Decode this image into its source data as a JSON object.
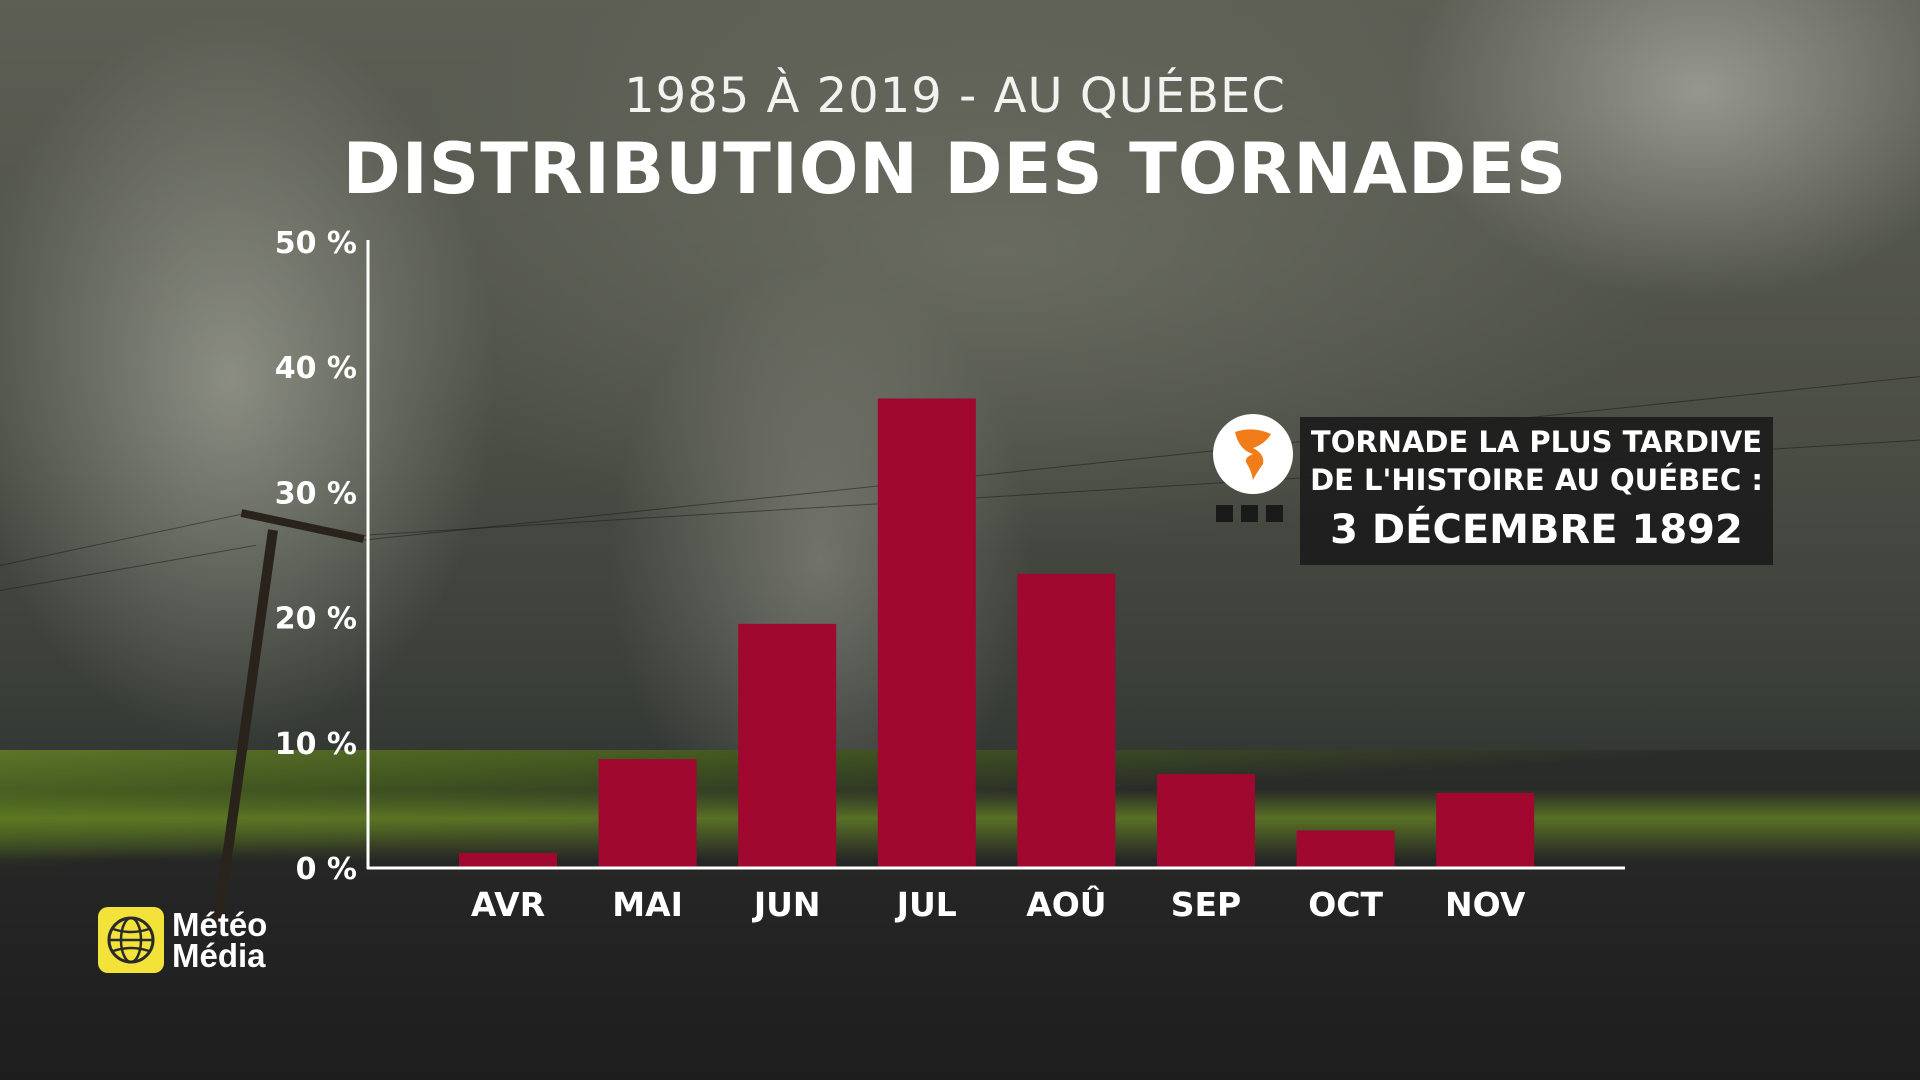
{
  "header": {
    "subtitle": "1985 À 2019 - AU QUÉBEC",
    "title": "DISTRIBUTION DES TORNADES"
  },
  "chart_data": {
    "type": "bar",
    "categories": [
      "AVR",
      "MAI",
      "JUN",
      "JUL",
      "AOÛ",
      "SEP",
      "OCT",
      "NOV"
    ],
    "values": [
      1.2,
      8.7,
      19.5,
      37.5,
      23.5,
      7.5,
      3.0,
      6.0
    ],
    "y_ticks": [
      0,
      10,
      20,
      30,
      40,
      50
    ],
    "y_tick_labels": [
      "0 %",
      "10 %",
      "20 %",
      "30 %",
      "40 %",
      "50 %"
    ],
    "ylim": [
      0,
      50
    ],
    "bar_color": "#a0082f",
    "axis_color": "#ffffff",
    "grid": false
  },
  "callout": {
    "line1": "TORNADE LA PLUS TARDIVE",
    "line2": "DE L'HISTOIRE AU QUÉBEC :",
    "date": "3 DÉCEMBRE 1892",
    "icon": "tornado-icon",
    "icon_color": "#f07c1a"
  },
  "logo": {
    "line1": "Météo",
    "line2": "Média",
    "mark_color": "#f2e23a"
  }
}
